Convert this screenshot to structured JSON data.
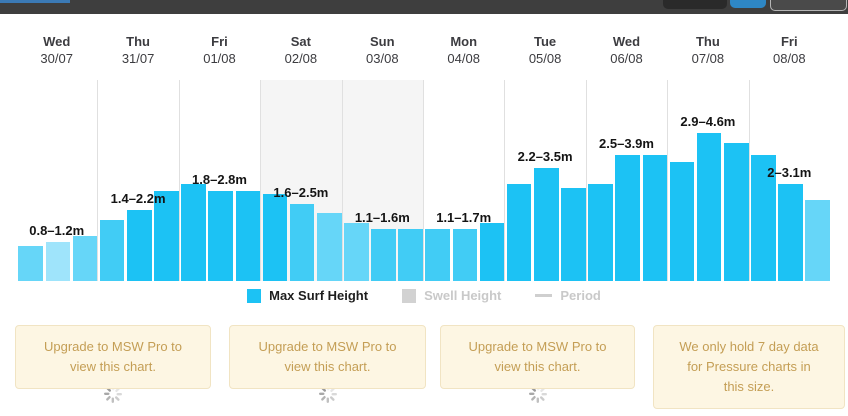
{
  "browser_chrome": {
    "bar_color": "#3e3e3e",
    "accent_color": "#3b7ab6",
    "tab_button_color": "#2e87c5"
  },
  "chart_data": {
    "type": "bar",
    "unit": "m",
    "ylabel": "Max Surf Height (m)",
    "grid": "vertical-day-separators",
    "weekend_shading": true,
    "bar_colors": {
      "full": "#1cc2f4",
      "medium": "#41ccf5",
      "light": "#66d6f8",
      "lightest": "#9fe4fb"
    },
    "days": [
      {
        "day": "Wed",
        "date": "30/07",
        "range": "0.8–1.2m",
        "weekend": false,
        "values_m": [
          1.1,
          1.2,
          1.4
        ],
        "shades": [
          "light",
          "lightest",
          "light"
        ]
      },
      {
        "day": "Thu",
        "date": "31/07",
        "range": "1.4–2.2m",
        "weekend": false,
        "values_m": [
          1.9,
          2.2,
          2.8
        ],
        "shades": [
          "medium",
          "full",
          "full"
        ]
      },
      {
        "day": "Fri",
        "date": "01/08",
        "range": "1.8–2.8m",
        "weekend": false,
        "values_m": [
          3.0,
          2.8,
          2.8
        ],
        "shades": [
          "full",
          "full",
          "full"
        ]
      },
      {
        "day": "Sat",
        "date": "02/08",
        "range": "1.6–2.5m",
        "weekend": true,
        "values_m": [
          2.7,
          2.4,
          2.1
        ],
        "shades": [
          "full",
          "medium",
          "light"
        ]
      },
      {
        "day": "Sun",
        "date": "03/08",
        "range": "1.1–1.6m",
        "weekend": true,
        "values_m": [
          1.8,
          1.6,
          1.6
        ],
        "shades": [
          "light",
          "medium",
          "medium"
        ]
      },
      {
        "day": "Mon",
        "date": "04/08",
        "range": "1.1–1.7m",
        "weekend": false,
        "values_m": [
          1.6,
          1.6,
          1.8
        ],
        "shades": [
          "medium",
          "medium",
          "full"
        ]
      },
      {
        "day": "Tue",
        "date": "05/08",
        "range": "2.2–3.5m",
        "weekend": false,
        "values_m": [
          3.0,
          3.5,
          2.9
        ],
        "shades": [
          "full",
          "full",
          "full"
        ]
      },
      {
        "day": "Wed",
        "date": "06/08",
        "range": "2.5–3.9m",
        "weekend": false,
        "values_m": [
          3.0,
          3.9,
          3.9
        ],
        "shades": [
          "full",
          "full",
          "full"
        ]
      },
      {
        "day": "Thu",
        "date": "07/08",
        "range": "2.9–4.6m",
        "weekend": false,
        "values_m": [
          3.7,
          4.6,
          4.3
        ],
        "shades": [
          "full",
          "full",
          "full"
        ]
      },
      {
        "day": "Fri",
        "date": "08/08",
        "range": "2–3.1m",
        "weekend": false,
        "values_m": [
          3.9,
          3.0,
          2.5
        ],
        "shades": [
          "full",
          "full",
          "light"
        ]
      }
    ],
    "legend": [
      {
        "label": "Max Surf Height",
        "swatch": "square",
        "color": "#1cc2f4",
        "text_color": "#1e1e1e",
        "active": true
      },
      {
        "label": "Swell Height",
        "swatch": "square",
        "color": "#d2d2d2",
        "text_color": "#c9c9c9",
        "active": false
      },
      {
        "label": "Period",
        "swatch": "line",
        "color": "#cfcfcf",
        "text_color": "#c9c9c9",
        "active": false
      }
    ]
  },
  "notices": {
    "items": [
      {
        "text": "Upgrade to MSW Pro to view this chart.",
        "loading": true
      },
      {
        "text": "Upgrade to MSW Pro to view this chart.",
        "loading": true
      },
      {
        "text": "Upgrade to MSW Pro to view this chart.",
        "loading": true
      },
      {
        "text": "We only hold 7 day data for Pressure charts in this size.",
        "loading": false
      }
    ]
  }
}
